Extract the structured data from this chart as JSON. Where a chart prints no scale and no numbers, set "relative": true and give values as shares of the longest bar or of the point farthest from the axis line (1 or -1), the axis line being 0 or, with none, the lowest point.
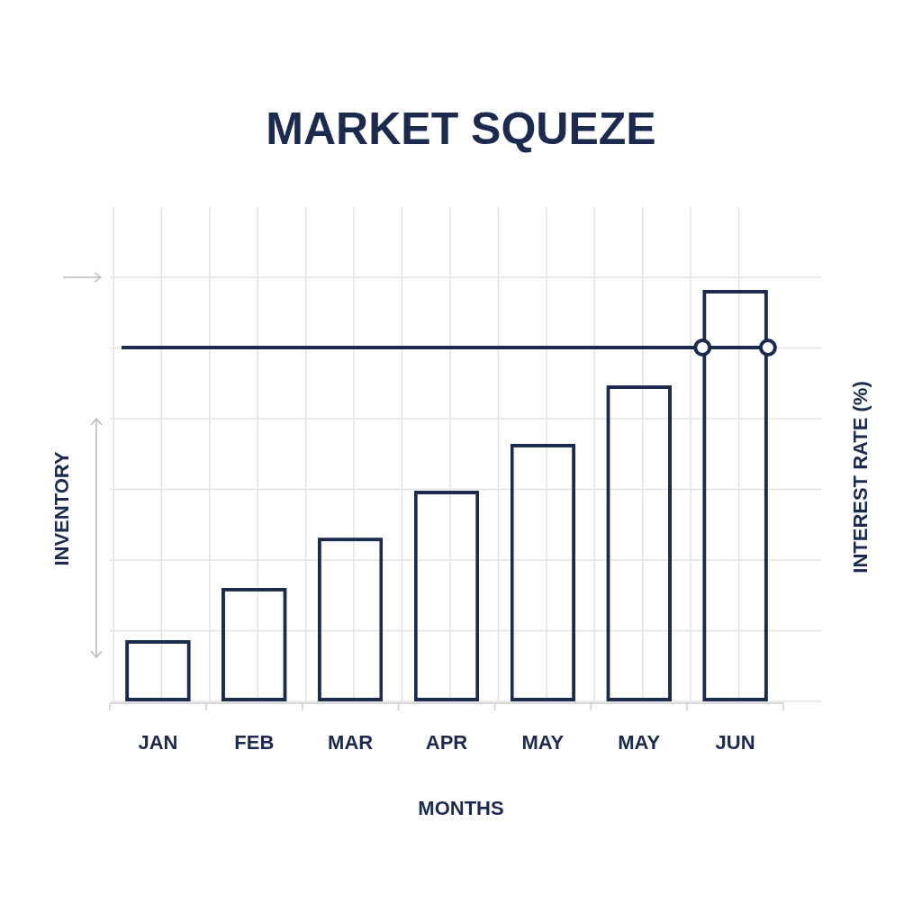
{
  "chart_data": {
    "type": "bar",
    "title": "MARKET SQUEZE",
    "xlabel": "MONTHS",
    "ylabel": "INVENTORY",
    "y2label": "INTEREST RATE (%)",
    "categories": [
      "JAN",
      "FEB",
      "MAR",
      "APR",
      "MAY",
      "MAY",
      "JUN"
    ],
    "relative": true,
    "series": [
      {
        "color": "#1b2a4e",
        "values": [
          0.149,
          0.276,
          0.398,
          0.512,
          0.626,
          0.768,
          1
        ]
      }
    ],
    "ref_lines": [
      {
        "axis": "y",
        "value": 0.86,
        "color": "#1b2a4e"
      }
    ],
    "grid": true
  }
}
